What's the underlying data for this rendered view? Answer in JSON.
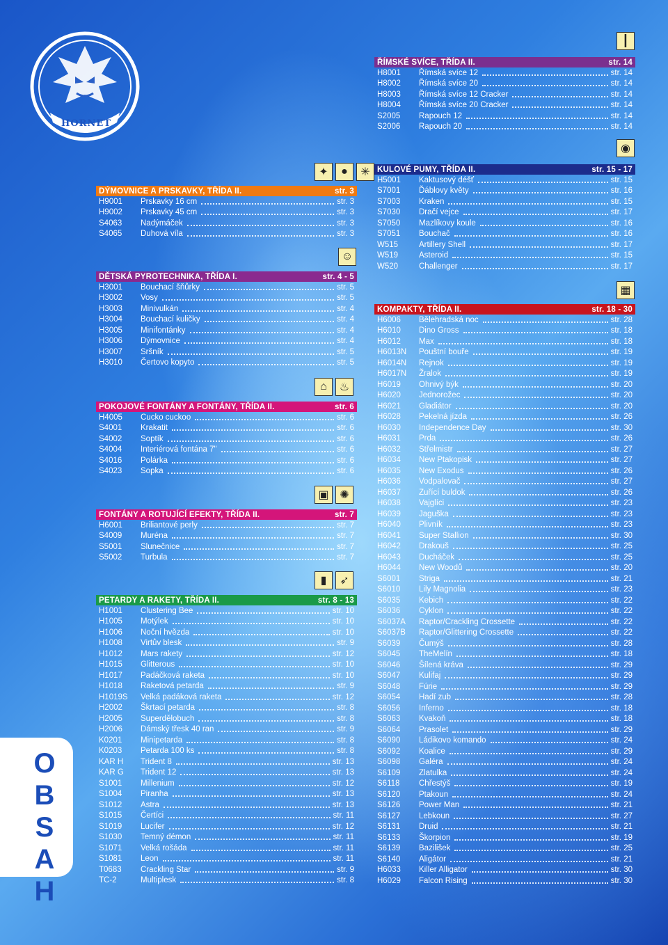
{
  "brand": {
    "logo_text": "HORNET"
  },
  "side_label": "OBSAH",
  "colors": {
    "orange": "#f07a12",
    "purple": "#8a2a8f",
    "pink": "#d4157a",
    "green": "#1a9a48",
    "violet": "#7b2f8f",
    "navy": "#1c2c8c",
    "red": "#c8141e"
  },
  "left_sections": [
    {
      "title": "DÝMOVNICE A PRSKAVKY, TŘÍDA II.",
      "page": "str. 3",
      "color": "#f07a12",
      "icons": [
        "sparkler-icon",
        "smoke-bomb-icon",
        "sparkle-icon"
      ],
      "items": [
        {
          "code": "H9001",
          "name": "Prskavky 16 cm",
          "page": "str. 3"
        },
        {
          "code": "H9002",
          "name": "Prskavky 45 cm",
          "page": "str. 3"
        },
        {
          "code": "S4063",
          "name": "Nadýmáček",
          "page": "str. 3"
        },
        {
          "code": "S4065",
          "name": "Duhová víla",
          "page": "str. 3"
        }
      ]
    },
    {
      "title": "DĚTSKÁ PYROTECHNIKA, TŘÍDA I.",
      "page": "str. 4 - 5",
      "color": "#8a2a8f",
      "icons": [
        "child-face-icon"
      ],
      "items": [
        {
          "code": "H3001",
          "name": "Bouchací šňůrky",
          "page": "str. 5"
        },
        {
          "code": "H3002",
          "name": "Vosy",
          "page": "str. 5"
        },
        {
          "code": "H3003",
          "name": "Minivulkán",
          "page": "str. 4"
        },
        {
          "code": "H3004",
          "name": "Bouchací kuličky",
          "page": "str. 4"
        },
        {
          "code": "H3005",
          "name": "Minifontánky",
          "page": "str. 4"
        },
        {
          "code": "H3006",
          "name": "Dýmovnice",
          "page": "str. 4"
        },
        {
          "code": "H3007",
          "name": "Sršník",
          "page": "str. 5"
        },
        {
          "code": "H3010",
          "name": "Čertovo kopyto",
          "page": "str. 5"
        }
      ]
    },
    {
      "title": "POKOJOVÉ FONTÁNY A FONTÁNY, TŘÍDA II.",
      "page": "str. 6",
      "color": "#d4157a",
      "icons": [
        "indoor-fountain-icon",
        "fountain-icon"
      ],
      "items": [
        {
          "code": "H4005",
          "name": "Cucko cuckoo",
          "page": "str. 6"
        },
        {
          "code": "S4001",
          "name": "Krakatit",
          "page": "str. 6"
        },
        {
          "code": "S4002",
          "name": "Soptík",
          "page": "str. 6"
        },
        {
          "code": "S4004",
          "name": "Interiérová fontána 7\"",
          "page": "str. 6"
        },
        {
          "code": "S4016",
          "name": "Polárka",
          "page": "str. 6"
        },
        {
          "code": "S4023",
          "name": "Sopka",
          "page": "str. 6"
        }
      ]
    },
    {
      "title": "FONTÁNY A ROTUJÍCÍ EFEKTY, TŘÍDA II.",
      "page": "str. 7",
      "color": "#d4157a",
      "icons": [
        "fountain-box-icon",
        "spinner-icon"
      ],
      "items": [
        {
          "code": "H6001",
          "name": "Briliantové perly",
          "page": "str. 7"
        },
        {
          "code": "S4009",
          "name": "Muréna",
          "page": "str. 7"
        },
        {
          "code": "S5001",
          "name": "Slunečnice",
          "page": "str. 7"
        },
        {
          "code": "S5002",
          "name": "Turbula",
          "page": "str. 7"
        }
      ]
    },
    {
      "title": "PETARDY A RAKETY, TŘÍDA II.",
      "page": "str. 8 - 13",
      "color": "#1a9a48",
      "icons": [
        "firecracker-icon",
        "rocket-icon"
      ],
      "items": [
        {
          "code": "H1001",
          "name": "Clustering Bee",
          "page": "str. 10"
        },
        {
          "code": "H1005",
          "name": "Motýlek",
          "page": "str. 10"
        },
        {
          "code": "H1006",
          "name": "Noční hvězda",
          "page": "str. 10"
        },
        {
          "code": "H1008",
          "name": "Virtův blesk",
          "page": "str. 9"
        },
        {
          "code": "H1012",
          "name": "Mars rakety",
          "page": "str. 12"
        },
        {
          "code": "H1015",
          "name": "Glitterous",
          "page": "str. 10"
        },
        {
          "code": "H1017",
          "name": "Padáčková raketa",
          "page": "str. 10"
        },
        {
          "code": "H1018",
          "name": "Raketová petarda",
          "page": "str. 9"
        },
        {
          "code": "H1019S",
          "name": "Velká padáková raketa",
          "page": "str. 12"
        },
        {
          "code": "H2002",
          "name": "Škrtací petarda",
          "page": "str. 8"
        },
        {
          "code": "H2005",
          "name": "Superdělobuch",
          "page": "str. 8"
        },
        {
          "code": "H2006",
          "name": "Dámský třesk 40 ran",
          "page": "str. 9"
        },
        {
          "code": "K0201",
          "name": "Minipetarda",
          "page": "str. 8"
        },
        {
          "code": "K0203",
          "name": "Petarda 100 ks",
          "page": "str. 8"
        },
        {
          "code": "KAR H",
          "name": "Trident 8",
          "page": "str. 13"
        },
        {
          "code": "KAR G",
          "name": "Trident 12",
          "page": "str. 13"
        },
        {
          "code": "S1001",
          "name": "Millenium",
          "page": "str. 12"
        },
        {
          "code": "S1004",
          "name": "Piranha",
          "page": "str. 13"
        },
        {
          "code": "S1012",
          "name": "Astra",
          "page": "str. 13"
        },
        {
          "code": "S1015",
          "name": "Čertíci",
          "page": "str. 11"
        },
        {
          "code": "S1019",
          "name": "Lucifer",
          "page": "str. 12"
        },
        {
          "code": "S1030",
          "name": "Temný démon",
          "page": "str. 11"
        },
        {
          "code": "S1071",
          "name": "Velká rošáda",
          "page": "str. 11"
        },
        {
          "code": "S1081",
          "name": "Leon",
          "page": "str. 11"
        },
        {
          "code": "T0683",
          "name": "Crackling Star",
          "page": "str. 9"
        },
        {
          "code": "TC-2",
          "name": "Multiplesk",
          "page": "str. 8"
        }
      ]
    }
  ],
  "right_sections": [
    {
      "title": "ŘÍMSKÉ SVÍCE, TŘÍDA II.",
      "page": "str. 14",
      "color": "#7b2f8f",
      "icons": [
        "roman-candle-icon"
      ],
      "items": [
        {
          "code": "H8001",
          "name": "Římská svíce 12",
          "page": "str. 14"
        },
        {
          "code": "H8002",
          "name": "Římská svíce 20",
          "page": "str. 14"
        },
        {
          "code": "H8003",
          "name": "Římská svíce 12 Cracker",
          "page": "str. 14"
        },
        {
          "code": "H8004",
          "name": "Římská svíce 20 Cracker",
          "page": "str. 14"
        },
        {
          "code": "S2005",
          "name": "Rapouch 12",
          "page": "str. 14"
        },
        {
          "code": "S2006",
          "name": "Rapouch 20",
          "page": "str. 14"
        }
      ]
    },
    {
      "title": "KULOVÉ PUMY, TŘÍDA II.",
      "page": "str. 15 - 17",
      "color": "#1c2c8c",
      "icons": [
        "shell-icon"
      ],
      "items": [
        {
          "code": "H5001",
          "name": "Kaktusový déšť",
          "page": "str. 15"
        },
        {
          "code": "S7001",
          "name": "Ďáblovy květy",
          "page": "str. 16"
        },
        {
          "code": "S7003",
          "name": "Kraken",
          "page": "str. 15"
        },
        {
          "code": "S7030",
          "name": "Dračí vejce",
          "page": "str. 17"
        },
        {
          "code": "S7050",
          "name": "Mazlíkovy koule",
          "page": "str. 16"
        },
        {
          "code": "S7051",
          "name": "Bouchač",
          "page": "str. 16"
        },
        {
          "code": "W515",
          "name": "Artillery Shell",
          "page": "str. 17"
        },
        {
          "code": "W519",
          "name": "Asteroid",
          "page": "str. 15"
        },
        {
          "code": "W520",
          "name": "Challenger",
          "page": "str. 17"
        }
      ]
    },
    {
      "title": "KOMPAKTY, TŘÍDA II.",
      "page": "str. 18 - 30",
      "color": "#c8141e",
      "icons": [
        "battery-icon"
      ],
      "items": [
        {
          "code": "H6006",
          "name": "Bělehradská noc",
          "page": "str. 28"
        },
        {
          "code": "H6010",
          "name": "Dino Gross",
          "page": "str. 18"
        },
        {
          "code": "H6012",
          "name": "Max",
          "page": "str. 18"
        },
        {
          "code": "H6013N",
          "name": "Pouštní bouře",
          "page": "str. 19"
        },
        {
          "code": "H6014N",
          "name": "Rejnok",
          "page": "str. 19"
        },
        {
          "code": "H6017N",
          "name": "Žralok",
          "page": "str. 19"
        },
        {
          "code": "H6019",
          "name": "Ohnivý býk",
          "page": "str. 20"
        },
        {
          "code": "H6020",
          "name": "Jednorožec",
          "page": "str. 20"
        },
        {
          "code": "H6021",
          "name": "Gladiátor",
          "page": "str. 20"
        },
        {
          "code": "H6028",
          "name": "Pekelná jízda",
          "page": "str. 26"
        },
        {
          "code": "H6030",
          "name": "Independence Day",
          "page": "str. 30"
        },
        {
          "code": "H6031",
          "name": "Prda",
          "page": "str. 26"
        },
        {
          "code": "H6032",
          "name": "Střelmistr",
          "page": "str. 27"
        },
        {
          "code": "H6034",
          "name": "New Ptakopisk",
          "page": "str. 27"
        },
        {
          "code": "H6035",
          "name": "New Exodus",
          "page": "str. 26"
        },
        {
          "code": "H6036",
          "name": "Vodpalovač",
          "page": "str. 27"
        },
        {
          "code": "H6037",
          "name": "Zuřící buldok",
          "page": "str. 26"
        },
        {
          "code": "H6038",
          "name": "Vajglíci",
          "page": "str. 23"
        },
        {
          "code": "H6039",
          "name": "Jaguška",
          "page": "str. 23"
        },
        {
          "code": "H6040",
          "name": "Plivník",
          "page": "str. 23"
        },
        {
          "code": "H6041",
          "name": "Super Stallion",
          "page": "str. 30"
        },
        {
          "code": "H6042",
          "name": "Drakouš",
          "page": "str. 25"
        },
        {
          "code": "H6043",
          "name": "Ducháček",
          "page": "str. 25"
        },
        {
          "code": "H6044",
          "name": "New Woodů",
          "page": "str. 20"
        },
        {
          "code": "S6001",
          "name": "Striga",
          "page": "str. 21"
        },
        {
          "code": "S6010",
          "name": "Lily Magnolia",
          "page": "str. 23"
        },
        {
          "code": "S6035",
          "name": "Kebich",
          "page": "str. 22"
        },
        {
          "code": "S6036",
          "name": "Cyklon",
          "page": "str. 22"
        },
        {
          "code": "S6037A",
          "name": "Raptor/Crackling Crossette",
          "page": "str. 22"
        },
        {
          "code": "S6037B",
          "name": "Raptor/Glittering Crossette",
          "page": "str. 22"
        },
        {
          "code": "S6039",
          "name": "Čumýš",
          "page": "str. 28"
        },
        {
          "code": "S6045",
          "name": "TheMelín",
          "page": "str. 18"
        },
        {
          "code": "S6046",
          "name": "Šílená kráva",
          "page": "str. 29"
        },
        {
          "code": "S6047",
          "name": "Kulifaj",
          "page": "str. 29"
        },
        {
          "code": "S6048",
          "name": "Fúrie",
          "page": "str. 29"
        },
        {
          "code": "S6054",
          "name": "Hadí zub",
          "page": "str. 28"
        },
        {
          "code": "S6056",
          "name": "Inferno",
          "page": "str. 18"
        },
        {
          "code": "S6063",
          "name": "Kvakoň",
          "page": "str. 18"
        },
        {
          "code": "S6064",
          "name": "Prasolet",
          "page": "str. 29"
        },
        {
          "code": "S6090",
          "name": "Ládikovo komando",
          "page": "str. 24"
        },
        {
          "code": "S6092",
          "name": "Koalice",
          "page": "str. 29"
        },
        {
          "code": "S6098",
          "name": "Galéra",
          "page": "str. 24"
        },
        {
          "code": "S6109",
          "name": "Zlatulka",
          "page": "str. 24"
        },
        {
          "code": "S6118",
          "name": "Chřestýš",
          "page": "str. 19"
        },
        {
          "code": "S6120",
          "name": "Ptakoun",
          "page": "str. 24"
        },
        {
          "code": "S6126",
          "name": "Power Man",
          "page": "str. 21"
        },
        {
          "code": "S6127",
          "name": "Lebkoun",
          "page": "str. 27"
        },
        {
          "code": "S6131",
          "name": "Druid",
          "page": "str. 21"
        },
        {
          "code": "S6133",
          "name": "Škorpion",
          "page": "str. 19"
        },
        {
          "code": "S6139",
          "name": "Bazilišek",
          "page": "str. 25"
        },
        {
          "code": "S6140",
          "name": "Aligátor",
          "page": "str. 21"
        },
        {
          "code": "H6033",
          "name": "Killer Alligator",
          "page": "str. 30"
        },
        {
          "code": "H6029",
          "name": "Falcon Rising",
          "page": "str. 30"
        }
      ]
    }
  ]
}
